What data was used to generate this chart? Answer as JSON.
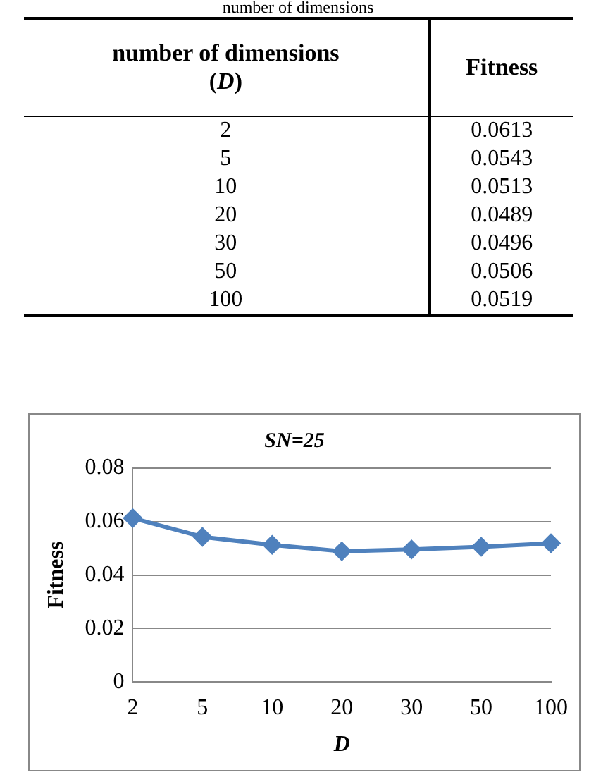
{
  "chart_data": [
    {
      "type": "other",
      "title": "number of dimensions",
      "annotations": [
        "number of dimensions (D)",
        "Fitness"
      ],
      "categories": [
        "2",
        "5",
        "10",
        "20",
        "30",
        "50",
        "100"
      ],
      "values": [
        0.0613,
        0.0543,
        0.0513,
        0.0489,
        0.0496,
        0.0506,
        0.0519
      ],
      "data_labels": true
    },
    {
      "type": "line",
      "title": "SN=25",
      "xlabel": "D",
      "ylabel": "Fitness",
      "categories": [
        "2",
        "5",
        "10",
        "20",
        "30",
        "50",
        "100"
      ],
      "series": [
        {
          "color": "#4f81bd",
          "values": [
            0.0613,
            0.0543,
            0.0513,
            0.0489,
            0.0496,
            0.0506,
            0.0519
          ]
        }
      ],
      "ylim": [
        0,
        0.08
      ],
      "yticks": [
        0,
        0.02,
        0.04,
        0.06,
        0.08
      ],
      "grid": "y",
      "marker": "diamond",
      "line_style": "solid"
    }
  ]
}
